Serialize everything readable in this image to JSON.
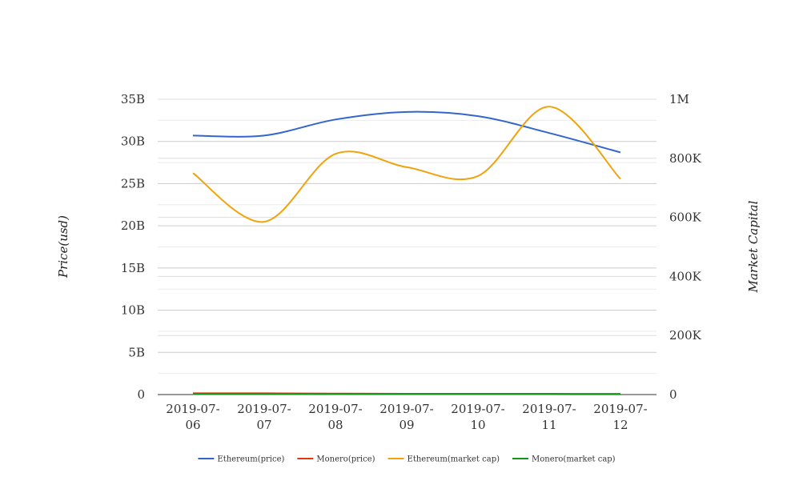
{
  "chart_data": {
    "type": "line",
    "title": "",
    "categories": [
      "2019-07-06",
      "2019-07-07",
      "2019-07-08",
      "2019-07-09",
      "2019-07-10",
      "2019-07-11",
      "2019-07-12"
    ],
    "x_tick_labels": [
      [
        "2019-07-",
        "06"
      ],
      [
        "2019-07-",
        "07"
      ],
      [
        "2019-07-",
        "08"
      ],
      [
        "2019-07-",
        "09"
      ],
      [
        "2019-07-",
        "10"
      ],
      [
        "2019-07-",
        "11"
      ],
      [
        "2019-07-",
        "12"
      ]
    ],
    "y_left": {
      "label": "Price(usd)",
      "lim": [
        0,
        35000000000
      ],
      "ticks": [
        0,
        5000000000,
        10000000000,
        15000000000,
        20000000000,
        25000000000,
        30000000000,
        35000000000
      ],
      "tick_labels": [
        "0",
        "5B",
        "10B",
        "15B",
        "20B",
        "25B",
        "30B",
        "35B"
      ]
    },
    "y_right": {
      "label": "Market Capital",
      "lim": [
        0,
        1000000
      ],
      "ticks": [
        0,
        200000,
        400000,
        600000,
        800000,
        1000000
      ],
      "tick_labels": [
        "0",
        "200K",
        "400K",
        "600K",
        "800K",
        "1M"
      ]
    },
    "grid": true,
    "legend_position": "bottom",
    "series": [
      {
        "name": "Ethereum(price)",
        "axis": "left",
        "color": "#3366cc",
        "values": [
          30700000000,
          30700000000,
          32600000000,
          33500000000,
          33000000000,
          31000000000,
          28700000000
        ]
      },
      {
        "name": "Monero(price)",
        "axis": "left",
        "color": "#dc3912",
        "values": [
          150000000,
          150000000,
          120000000,
          100000000,
          100000000,
          90000000,
          80000000
        ]
      },
      {
        "name": "Ethereum(market cap)",
        "axis": "right",
        "color": "#f0a30a",
        "values": [
          750000,
          585000,
          815000,
          770000,
          740000,
          975000,
          730000
        ]
      },
      {
        "name": "Monero(market cap)",
        "axis": "right",
        "color": "#109618",
        "values": [
          1500,
          1500,
          1400,
          1300,
          1300,
          1200,
          1100
        ]
      }
    ]
  }
}
